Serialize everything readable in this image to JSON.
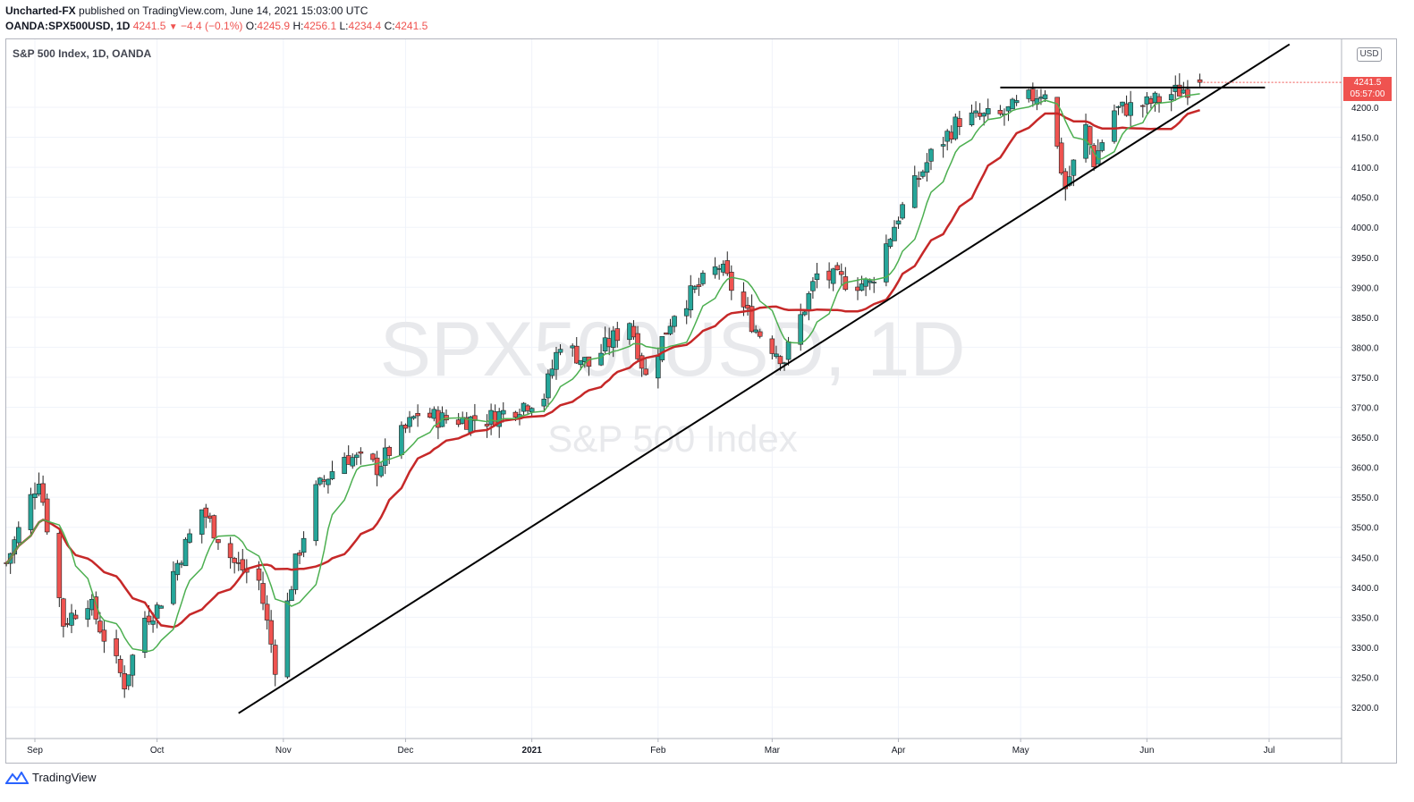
{
  "header": {
    "author": "Uncharted-FX",
    "published": "published on TradingView.com, June 14, 2021 15:03:00 UTC",
    "symbol": "OANDA:SPX500USD, 1D",
    "last": "4241.5",
    "change": "−4.4 (−0.1%)",
    "o_label": "O:",
    "o_val": "4245.9",
    "h_label": "H:",
    "h_val": "4256.1",
    "l_label": "L:",
    "l_val": "4234.4",
    "c_label": "C:",
    "c_val": "4241.5"
  },
  "legend": "S&P 500 Index, 1D, OANDA",
  "currency": "USD",
  "price_label": {
    "price": "4241.5",
    "countdown": "05:57:00"
  },
  "watermark": {
    "line1": "SPX500USD, 1D",
    "line2": "S&P 500 Index"
  },
  "footer": {
    "brand": "TradingView"
  },
  "colors": {
    "up": "#26a69a",
    "down": "#ef5350",
    "ma_fast": "#4caf50",
    "ma_slow": "#c62828",
    "trendline": "#000000"
  },
  "chart_data": {
    "type": "candlestick",
    "ylim": [
      3150,
      4300
    ],
    "y_ticks": [
      3200,
      3250,
      3300,
      3350,
      3400,
      3450,
      3500,
      3550,
      3600,
      3650,
      3700,
      3750,
      3800,
      3850,
      3900,
      3950,
      4000,
      4050,
      4100,
      4150,
      4200
    ],
    "x_ticks": [
      "Sep",
      "Oct",
      "Nov",
      "Dec",
      "2021",
      "Feb",
      "Mar",
      "Apr",
      "May",
      "Jun",
      "Jul"
    ],
    "x_tick_dates": [
      "2020-09-01",
      "2020-10-01",
      "2020-11-01",
      "2020-12-01",
      "2021-01-01",
      "2021-02-01",
      "2021-03-01",
      "2021-04-01",
      "2021-05-01",
      "2021-06-01",
      "2021-07-01"
    ],
    "anchors": [
      [
        "2020-08-25",
        3440
      ],
      [
        "2020-09-02",
        3585
      ],
      [
        "2020-09-08",
        3340
      ],
      [
        "2020-09-14",
        3380
      ],
      [
        "2020-09-23",
        3240
      ],
      [
        "2020-09-28",
        3350
      ],
      [
        "2020-10-01",
        3365
      ],
      [
        "2020-10-12",
        3530
      ],
      [
        "2020-10-20",
        3440
      ],
      [
        "2020-10-26",
        3410
      ],
      [
        "2020-10-30",
        3270
      ],
      [
        "2020-11-04",
        3440
      ],
      [
        "2020-11-09",
        3560
      ],
      [
        "2020-11-16",
        3620
      ],
      [
        "2020-11-24",
        3600
      ],
      [
        "2020-12-04",
        3690
      ],
      [
        "2020-12-10",
        3680
      ],
      [
        "2020-12-21",
        3680
      ],
      [
        "2021-01-04",
        3720
      ],
      [
        "2021-01-08",
        3810
      ],
      [
        "2021-01-15",
        3770
      ],
      [
        "2021-01-25",
        3845
      ],
      [
        "2021-01-29",
        3750
      ],
      [
        "2021-02-05",
        3860
      ],
      [
        "2021-02-16",
        3935
      ],
      [
        "2021-02-25",
        3830
      ],
      [
        "2021-03-04",
        3780
      ],
      [
        "2021-03-12",
        3920
      ],
      [
        "2021-03-19",
        3910
      ],
      [
        "2021-03-25",
        3905
      ],
      [
        "2021-04-01",
        4020
      ],
      [
        "2021-04-09",
        4120
      ],
      [
        "2021-04-16",
        4180
      ],
      [
        "2021-04-26",
        4185
      ],
      [
        "2021-05-07",
        4230
      ],
      [
        "2021-05-12",
        4065
      ],
      [
        "2021-05-17",
        4165
      ],
      [
        "2021-05-19",
        4110
      ],
      [
        "2021-05-24",
        4195
      ],
      [
        "2021-06-01",
        4205
      ],
      [
        "2021-06-08",
        4225
      ],
      [
        "2021-06-14",
        4241.5
      ]
    ],
    "series": [
      {
        "name": "MA fast",
        "note": "green moving average"
      },
      {
        "name": "MA slow",
        "note": "red moving average"
      }
    ],
    "trendlines": [
      {
        "from": [
          "2020-10-21",
          3190
        ],
        "to": [
          "2021-07-06",
          4305
        ]
      },
      {
        "from": [
          "2021-04-26",
          4233
        ],
        "to": [
          "2021-06-30",
          4233
        ]
      }
    ]
  }
}
